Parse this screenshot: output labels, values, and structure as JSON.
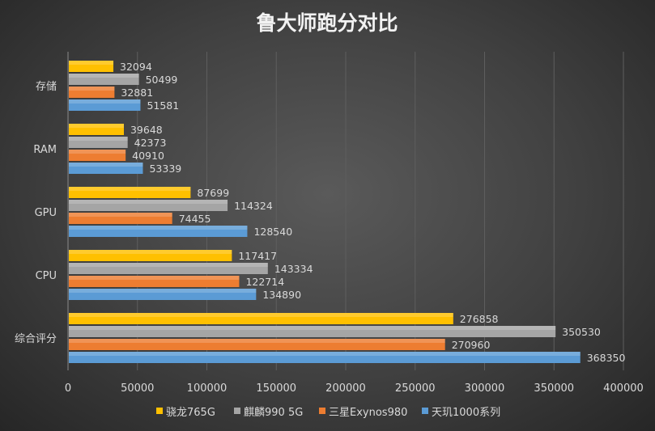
{
  "chart_data": {
    "type": "bar",
    "orientation": "horizontal",
    "title": "鲁大师跑分对比",
    "categories": [
      "存储",
      "RAM",
      "GPU",
      "CPU",
      "综合评分"
    ],
    "series": [
      {
        "name": "骁龙765G",
        "color": "#ffc000",
        "values": [
          32094,
          39648,
          87699,
          117417,
          276858
        ]
      },
      {
        "name": "麒麟990 5G",
        "color": "#a5a5a5",
        "values": [
          50499,
          42373,
          114324,
          143334,
          350530
        ]
      },
      {
        "name": "三星Exynos980",
        "color": "#ed7d31",
        "values": [
          32881,
          40910,
          74455,
          122714,
          270960
        ]
      },
      {
        "name": "天玑1000系列",
        "color": "#5b9bd5",
        "values": [
          51581,
          53339,
          128540,
          134890,
          368350
        ]
      }
    ],
    "xlim": [
      0,
      400000
    ],
    "xticks": [
      "0",
      "50000",
      "100000",
      "150000",
      "200000",
      "250000",
      "300000",
      "350000",
      "400000"
    ],
    "grid": true,
    "legend_position": "bottom",
    "data_labels": true
  }
}
